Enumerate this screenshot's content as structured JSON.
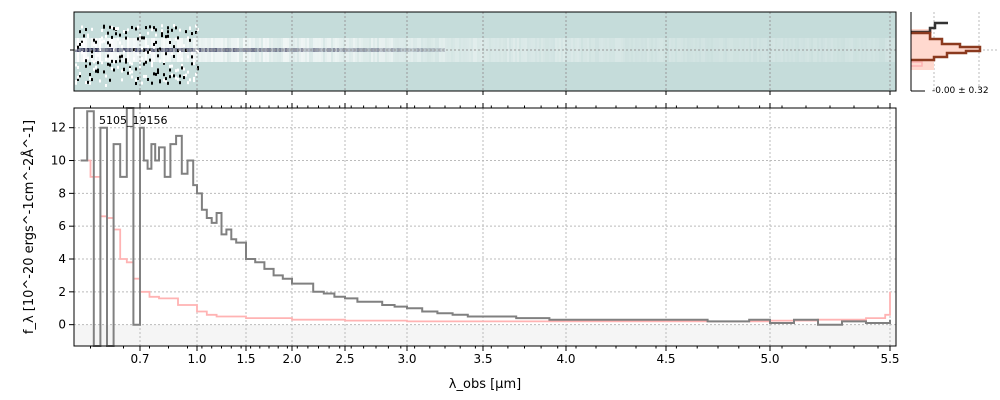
{
  "chart_data": {
    "type": "line",
    "label": "5105_19156",
    "xlabel": "λ_obs [μm]",
    "ylabel": "f_λ [10^-20 ergs^-1cm^-2Å^-1]",
    "xticks": [
      0.7,
      1.0,
      1.5,
      2.0,
      2.5,
      3.0,
      3.5,
      4.0,
      4.5,
      5.0,
      5.5
    ],
    "xtick_labels": [
      "0.7",
      "1.0",
      "1.5",
      "2.0",
      "2.5",
      "3.0",
      "3.5",
      "4.0",
      "4.5",
      "5.0",
      "5.5"
    ],
    "yticks": [
      0,
      2,
      4,
      6,
      8,
      10,
      12
    ],
    "ylim": [
      -1.3,
      13.2
    ],
    "xlim": [
      0.5,
      5.52
    ],
    "grid": true,
    "colors": {
      "flux": "#808080",
      "error": "#ffb3b3",
      "hist": "#8b3a1f",
      "panel2d": "#c5dcda"
    },
    "series": [
      {
        "role": "flux",
        "x": [
          0.52,
          0.54,
          0.56,
          0.58,
          0.6,
          0.62,
          0.64,
          0.66,
          0.68,
          0.7,
          0.72,
          0.74,
          0.76,
          0.78,
          0.8,
          0.83,
          0.86,
          0.89,
          0.92,
          0.95,
          0.98,
          1.0,
          1.05,
          1.1,
          1.15,
          1.2,
          1.25,
          1.3,
          1.35,
          1.4,
          1.5,
          1.6,
          1.7,
          1.8,
          1.9,
          2.0,
          2.1,
          2.2,
          2.3,
          2.4,
          2.5,
          2.6,
          2.7,
          2.8,
          2.9,
          3.0,
          3.1,
          3.2,
          3.3,
          3.4,
          3.5,
          3.7,
          3.9,
          4.1,
          4.3,
          4.5,
          4.7,
          4.9,
          5.0,
          5.1,
          5.2,
          5.3,
          5.4,
          5.5
        ],
        "values": [
          10,
          13,
          -2,
          12,
          -3,
          11,
          9,
          14,
          0,
          12,
          10,
          9.5,
          11,
          10,
          10.8,
          9,
          11,
          11.5,
          9.2,
          10,
          8.5,
          8,
          7,
          6.5,
          6.2,
          6.8,
          5.5,
          5.8,
          5.2,
          5,
          4,
          3.8,
          3.4,
          3,
          2.8,
          2.5,
          2.5,
          2.0,
          1.9,
          1.7,
          1.6,
          1.4,
          1.4,
          1.2,
          1.1,
          1.0,
          0.8,
          0.7,
          0.6,
          0.5,
          0.5,
          0.4,
          0.3,
          0.3,
          0.3,
          0.3,
          0.2,
          0.3,
          0.1,
          0.3,
          0.0,
          0.2,
          0.1,
          0.3
        ]
      },
      {
        "role": "error",
        "x": [
          0.52,
          0.55,
          0.58,
          0.6,
          0.62,
          0.64,
          0.66,
          0.68,
          0.7,
          0.75,
          0.8,
          0.9,
          1.0,
          1.1,
          1.2,
          1.5,
          2.0,
          2.5,
          3.0,
          3.5,
          4.0,
          4.5,
          5.0,
          5.2,
          5.4,
          5.48,
          5.5
        ],
        "values": [
          10,
          9,
          6.6,
          6.5,
          5.8,
          4,
          3.8,
          2.8,
          2.0,
          1.7,
          1.6,
          1.2,
          0.8,
          0.6,
          0.5,
          0.4,
          0.3,
          0.25,
          0.2,
          0.2,
          0.2,
          0.2,
          0.25,
          0.3,
          0.4,
          0.6,
          2.0
        ]
      }
    ],
    "hist_label": "-0.00 ± 0.32"
  }
}
